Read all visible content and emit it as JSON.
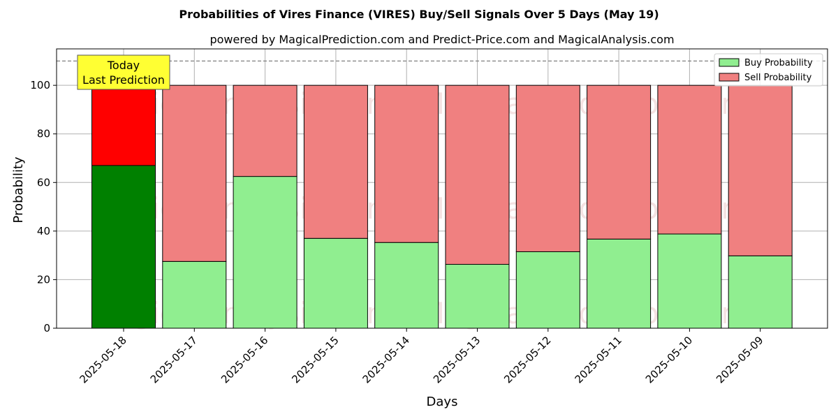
{
  "chart_data": {
    "type": "bar",
    "stacked": true,
    "title": "Probabilities of Vires Finance (VIRES) Buy/Sell Signals Over 5 Days (May 19)",
    "subtitle": "powered by MagicalPrediction.com and Predict-Price.com and MagicalAnalysis.com",
    "xlabel": "Days",
    "ylabel": "Probability",
    "ylim": [
      0,
      115
    ],
    "yticks": [
      0,
      20,
      40,
      60,
      80,
      100
    ],
    "grid": true,
    "legend_position": "top-right",
    "categories": [
      "2025-05-18",
      "2025-05-17",
      "2025-05-16",
      "2025-05-15",
      "2025-05-14",
      "2025-05-13",
      "2025-05-12",
      "2025-05-11",
      "2025-05-10",
      "2025-05-09"
    ],
    "series": [
      {
        "name": "Buy Probability",
        "color": "#90ee90",
        "highlight_color": "#008000",
        "values": [
          67,
          27.5,
          62.5,
          37,
          35.3,
          26.3,
          31.5,
          36.7,
          38.8,
          29.8
        ]
      },
      {
        "name": "Sell Probability",
        "color": "#f08080",
        "highlight_color": "#ff0000",
        "values": [
          33,
          72.5,
          37.5,
          63,
          64.7,
          73.7,
          68.5,
          63.3,
          61.2,
          70.2
        ]
      }
    ],
    "reference_line": {
      "y": 110,
      "style": "dashed",
      "color": "#808080"
    },
    "annotation": {
      "lines": [
        "Today",
        "Last Prediction"
      ],
      "category_index": 0,
      "background": "#ffff33"
    },
    "watermarks": [
      "MagicalAnalysis.com",
      "MagicalPrediction.com"
    ]
  }
}
